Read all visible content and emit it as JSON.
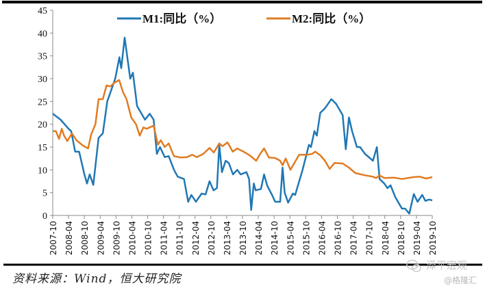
{
  "chart_data": {
    "type": "line",
    "title": "",
    "xlabel": "",
    "ylabel": "",
    "ylim": [
      0,
      45
    ],
    "yticks": [
      "0",
      "5",
      "10",
      "15",
      "20",
      "25",
      "30",
      "35",
      "40",
      "45"
    ],
    "x_start": "2007-10",
    "x_unit": "months since 2007-10",
    "xlim": [
      0,
      144
    ],
    "xticks": [
      "2007-10",
      "2008-04",
      "2008-10",
      "2009-04",
      "2009-10",
      "2010-04",
      "2010-10",
      "2011-04",
      "2011-10",
      "2012-04",
      "2012-10",
      "2013-04",
      "2013-10",
      "2014-04",
      "2014-10",
      "2015-04",
      "2015-10",
      "2016-04",
      "2016-10",
      "2017-04",
      "2017-10",
      "2018-04",
      "2018-10",
      "2019-04",
      "2019-10"
    ],
    "legend_position": "top",
    "grid": false,
    "series": [
      {
        "name": "M1:同比（%）",
        "color": "#1f77b4",
        "points": [
          [
            0,
            22.3
          ],
          [
            3,
            21
          ],
          [
            6,
            19
          ],
          [
            7,
            18.5
          ],
          [
            8.5,
            14
          ],
          [
            10,
            14
          ],
          [
            12,
            9
          ],
          [
            13,
            7
          ],
          [
            14,
            9
          ],
          [
            15.4,
            6.7
          ],
          [
            17.4,
            17
          ],
          [
            19,
            18
          ],
          [
            20.7,
            25
          ],
          [
            23.7,
            30
          ],
          [
            25.3,
            34.7
          ],
          [
            26,
            32.3
          ],
          [
            27.3,
            39
          ],
          [
            29.4,
            30
          ],
          [
            30.4,
            31.3
          ],
          [
            32,
            24
          ],
          [
            35,
            21
          ],
          [
            36.8,
            22.3
          ],
          [
            38.3,
            21
          ],
          [
            39.5,
            13.5
          ],
          [
            40.7,
            15
          ],
          [
            42.5,
            12.8
          ],
          [
            44,
            13
          ],
          [
            46,
            10
          ],
          [
            47.4,
            8.5
          ],
          [
            49.8,
            8
          ],
          [
            51.4,
            3
          ],
          [
            52.6,
            4.5
          ],
          [
            54.3,
            3
          ],
          [
            56.5,
            4.8
          ],
          [
            58,
            4.6
          ],
          [
            59.5,
            7.5
          ],
          [
            61,
            5.5
          ],
          [
            62.3,
            6
          ],
          [
            63.2,
            15.5
          ],
          [
            64.2,
            9.5
          ],
          [
            65.6,
            12
          ],
          [
            66.8,
            11.5
          ],
          [
            68.4,
            9
          ],
          [
            70,
            10
          ],
          [
            71.3,
            9
          ],
          [
            73.5,
            9.5
          ],
          [
            74.5,
            8
          ],
          [
            75.3,
            1.2
          ],
          [
            76.3,
            7
          ],
          [
            77,
            5.5
          ],
          [
            79,
            5.8
          ],
          [
            80.2,
            9
          ],
          [
            81.4,
            6.5
          ],
          [
            83.2,
            4.5
          ],
          [
            84.4,
            3
          ],
          [
            86.3,
            3
          ],
          [
            87.2,
            10.5
          ],
          [
            88,
            5
          ],
          [
            89.3,
            2.8
          ],
          [
            91.1,
            4.8
          ],
          [
            92,
            4.5
          ],
          [
            94.8,
            10
          ],
          [
            97.2,
            15.5
          ],
          [
            98,
            15
          ],
          [
            99.3,
            18.5
          ],
          [
            100.2,
            17.5
          ],
          [
            101.5,
            22.5
          ],
          [
            103.3,
            23.5
          ],
          [
            105.7,
            25.5
          ],
          [
            107.5,
            24.5
          ],
          [
            110,
            22
          ],
          [
            111.2,
            14.5
          ],
          [
            112.4,
            21.5
          ],
          [
            113.6,
            18.5
          ],
          [
            115.4,
            15
          ],
          [
            116.6,
            15
          ],
          [
            118.5,
            13.5
          ],
          [
            121.5,
            12
          ],
          [
            123,
            15
          ],
          [
            124,
            8
          ],
          [
            125.8,
            7
          ],
          [
            127,
            6
          ],
          [
            128.2,
            6.6
          ],
          [
            130,
            4
          ],
          [
            132.5,
            1.5
          ],
          [
            133.7,
            1.5
          ],
          [
            135.3,
            0.4
          ],
          [
            137,
            4.7
          ],
          [
            138.4,
            3
          ],
          [
            140.2,
            4.5
          ],
          [
            141.4,
            3.2
          ],
          [
            142.8,
            3.5
          ],
          [
            144,
            3.3
          ]
        ]
      },
      {
        "name": "M2:同比（%）",
        "color": "#e07b21",
        "points": [
          [
            0,
            18.5
          ],
          [
            1.2,
            18.5
          ],
          [
            2.4,
            16.8
          ],
          [
            3.4,
            19
          ],
          [
            4.3,
            17.5
          ],
          [
            5.5,
            16.3
          ],
          [
            7.3,
            18
          ],
          [
            9,
            16.5
          ],
          [
            11.5,
            15.3
          ],
          [
            13.4,
            14.7
          ],
          [
            14.6,
            17.8
          ],
          [
            16.2,
            20
          ],
          [
            17.4,
            25.5
          ],
          [
            19,
            25.5
          ],
          [
            20.4,
            28.5
          ],
          [
            21.9,
            28.3
          ],
          [
            23.1,
            29
          ],
          [
            25.2,
            29.7
          ],
          [
            26.7,
            27
          ],
          [
            28,
            25.5
          ],
          [
            29.8,
            21.5
          ],
          [
            31.6,
            20
          ],
          [
            33,
            17.5
          ],
          [
            34.4,
            19.3
          ],
          [
            35.6,
            19
          ],
          [
            38.3,
            19.7
          ],
          [
            39.9,
            15.5
          ],
          [
            41,
            16.5
          ],
          [
            42.5,
            15
          ],
          [
            44,
            15.8
          ],
          [
            46,
            13
          ],
          [
            48.6,
            12.7
          ],
          [
            51,
            12.8
          ],
          [
            52.9,
            13.3
          ],
          [
            54.7,
            12.8
          ],
          [
            57.1,
            13.5
          ],
          [
            59.5,
            14.8
          ],
          [
            61.1,
            13.8
          ],
          [
            63.2,
            15.8
          ],
          [
            64.4,
            15.2
          ],
          [
            66.3,
            16
          ],
          [
            68.3,
            14
          ],
          [
            70,
            14.7
          ],
          [
            72.4,
            14
          ],
          [
            74.7,
            13.2
          ],
          [
            77.2,
            12
          ],
          [
            78.7,
            13.5
          ],
          [
            80.2,
            14.7
          ],
          [
            82,
            12.7
          ],
          [
            84.4,
            12.6
          ],
          [
            86.3,
            12
          ],
          [
            87.2,
            11
          ],
          [
            88.4,
            12.5
          ],
          [
            90.2,
            10
          ],
          [
            93.5,
            13.3
          ],
          [
            96.5,
            13.3
          ],
          [
            98.4,
            13.5
          ],
          [
            99.6,
            14
          ],
          [
            101.5,
            13.2
          ],
          [
            103.3,
            12
          ],
          [
            105.1,
            10.2
          ],
          [
            106.9,
            11.5
          ],
          [
            110,
            11.4
          ],
          [
            112.4,
            10.5
          ],
          [
            114.8,
            9.3
          ],
          [
            118.5,
            8.8
          ],
          [
            121.5,
            8.5
          ],
          [
            122.7,
            8.2
          ],
          [
            124,
            8.8
          ],
          [
            125.8,
            8.2
          ],
          [
            129.5,
            8.3
          ],
          [
            132.5,
            8
          ],
          [
            136.8,
            8.4
          ],
          [
            139.2,
            8.5
          ],
          [
            141.7,
            8.1
          ],
          [
            144,
            8.4
          ]
        ]
      }
    ]
  },
  "footer": {
    "source": "资料来源：Wind，恒大研究院"
  },
  "watermark": {
    "brand": "泽平宏观",
    "handle": "@格隆汇"
  }
}
